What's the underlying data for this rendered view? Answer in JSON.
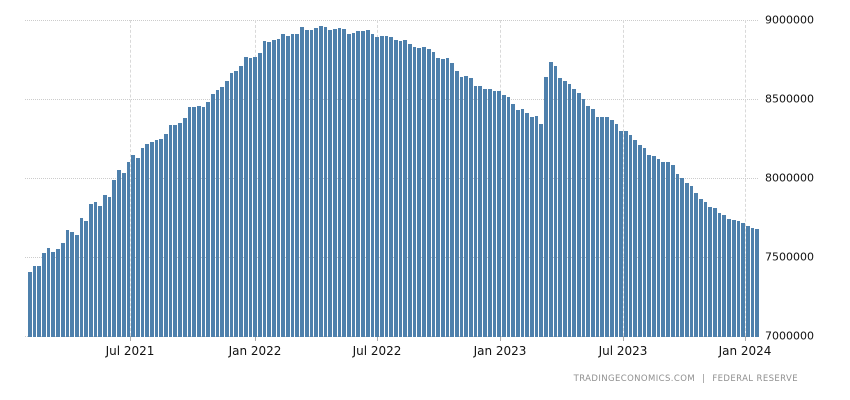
{
  "chart_data": {
    "type": "bar",
    "title": "",
    "xlabel": "",
    "ylabel": "",
    "ylim": [
      7000000,
      9000000
    ],
    "grid": true,
    "legend": null,
    "frequency": "weekly",
    "estimated_start": "2021-02-03",
    "estimated_end": "2024-01-24",
    "n_bars": 156,
    "y_ticks": [
      {
        "label": "7000000",
        "value": 7000000
      },
      {
        "label": "7500000",
        "value": 7500000
      },
      {
        "label": "8000000",
        "value": 8000000
      },
      {
        "label": "8500000",
        "value": 8500000
      },
      {
        "label": "9000000",
        "value": 9000000
      }
    ],
    "x_ticks": [
      {
        "label": "Jul 2021",
        "x": 130
      },
      {
        "label": "Jan 2022",
        "x": 255
      },
      {
        "label": "Jul 2022",
        "x": 377
      },
      {
        "label": "Jan 2023",
        "x": 500
      },
      {
        "label": "Jul 2023",
        "x": 623
      },
      {
        "label": "Jan 2024",
        "x": 745
      }
    ],
    "values": [
      7405000,
      7441000,
      7443000,
      7525000,
      7557000,
      7532000,
      7551000,
      7589000,
      7671000,
      7658000,
      7639000,
      7747000,
      7728000,
      7835000,
      7848000,
      7823000,
      7892000,
      7880000,
      7987000,
      8051000,
      8032000,
      8101000,
      8146000,
      8127000,
      8190000,
      8215000,
      8227000,
      8240000,
      8244000,
      8278000,
      8336000,
      8335000,
      8347000,
      8381000,
      8448000,
      8448000,
      8453000,
      8449000,
      8480000,
      8531000,
      8558000,
      8575000,
      8611000,
      8664000,
      8676000,
      8712000,
      8766000,
      8757000,
      8765000,
      8789000,
      8867000,
      8860000,
      8876000,
      8878000,
      8911000,
      8897000,
      8911000,
      8909000,
      8954000,
      8937000,
      8937000,
      8950000,
      8965000,
      8955000,
      8939000,
      8940000,
      8951000,
      8944000,
      8914000,
      8915000,
      8929000,
      8932000,
      8934000,
      8910000,
      8892000,
      8897000,
      8899000,
      8890000,
      8871000,
      8869000,
      8874000,
      8851000,
      8826000,
      8822000,
      8832000,
      8817000,
      8795000,
      8759000,
      8754000,
      8757000,
      8729000,
      8675000,
      8641000,
      8647000,
      8630000,
      8585000,
      8583000,
      8566000,
      8565000,
      8551000,
      8551000,
      8527000,
      8513000,
      8470000,
      8433000,
      8435000,
      8409000,
      8385000,
      8390000,
      8342000,
      8639000,
      8734000,
      8706000,
      8632000,
      8615000,
      8593000,
      8562000,
      8540000,
      8503000,
      8456000,
      8436000,
      8386000,
      8389000,
      8387000,
      8365000,
      8341000,
      8299000,
      8298000,
      8275000,
      8243000,
      8207000,
      8191000,
      8146000,
      8139000,
      8120000,
      8099000,
      8101000,
      8082000,
      8024000,
      7997000,
      7971000,
      7951000,
      7907000,
      7866000,
      7846000,
      7815000,
      7813000,
      7779000,
      7764000,
      7742000,
      7737000,
      7729000,
      7714000,
      7698000,
      7683000,
      7676000
    ],
    "colors": {
      "bar": "#4e80ac",
      "grid": "#cccccc",
      "axis_text": "#111111",
      "attribution_text": "#8f8f8f",
      "background": "#ffffff"
    }
  },
  "attribution": {
    "site": "TRADINGECONOMICS.COM",
    "separator": "|",
    "source": "FEDERAL RESERVE"
  }
}
